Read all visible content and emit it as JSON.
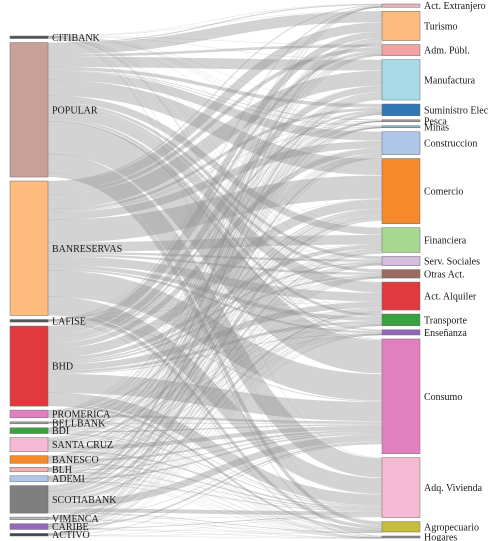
{
  "diagram": {
    "type": "sankey",
    "sources": [
      {
        "label": "CITIBANK",
        "color": "#555555",
        "weight": 0.4
      },
      {
        "label": "POPULAR",
        "color": "#c9a098",
        "weight": 21
      },
      {
        "label": "BANRESERVAS",
        "color": "#fdbb7e",
        "weight": 21
      },
      {
        "label": "LAFISE",
        "color": "#555555",
        "weight": 0.4
      },
      {
        "label": "BHD",
        "color": "#e0393e",
        "weight": 12.5
      },
      {
        "label": "PROMERICA",
        "color": "#e27fbf",
        "weight": 1.2
      },
      {
        "label": "BELLBANK",
        "color": "#999999",
        "weight": 0.3
      },
      {
        "label": "BDI",
        "color": "#3aa140",
        "weight": 0.9
      },
      {
        "label": "SANTA CRUZ",
        "color": "#f5b9d3",
        "weight": 2.2
      },
      {
        "label": "BANESCO",
        "color": "#f58a2c",
        "weight": 1.2
      },
      {
        "label": "BLH",
        "color": "#f3b0b0",
        "weight": 0.7
      },
      {
        "label": "ADEMI",
        "color": "#aec7e8",
        "weight": 0.9
      },
      {
        "label": "SCOTIABANK",
        "color": "#7f7f7f",
        "weight": 4.3
      },
      {
        "label": "VIMENCA",
        "color": "#bbbbbb",
        "weight": 0.4
      },
      {
        "label": "CARIBE",
        "color": "#9467bd",
        "weight": 0.9
      },
      {
        "label": "ACTIVO",
        "color": "#444444",
        "weight": 0.4
      }
    ],
    "targets": [
      {
        "label": "Act. Extranjero",
        "color": "#e8b4b4",
        "weight": 0.5
      },
      {
        "label": "Turismo",
        "color": "#fdbb7e",
        "weight": 4.5
      },
      {
        "label": "Adm. Públ.",
        "color": "#f3a3a3",
        "weight": 1.7
      },
      {
        "label": "Manufactura",
        "color": "#a8dbe8",
        "weight": 6.2
      },
      {
        "label": "Suministro Elec",
        "color": "#2f78b4",
        "weight": 1.8
      },
      {
        "label": "Pesca",
        "color": "#999999",
        "weight": 0.3
      },
      {
        "label": "Minas",
        "color": "#7ab8c9",
        "weight": 0.3
      },
      {
        "label": "Construccion",
        "color": "#aec7e8",
        "weight": 3.5
      },
      {
        "label": "Comercio",
        "color": "#f58a2c",
        "weight": 10
      },
      {
        "label": "Financiera",
        "color": "#a6d98f",
        "weight": 3.8
      },
      {
        "label": "Serv. Sociales",
        "color": "#d5bde0",
        "weight": 1.4
      },
      {
        "label": "Otras Act.",
        "color": "#9c6a5f",
        "weight": 1.3
      },
      {
        "label": "Act. Alquiler",
        "color": "#e0393e",
        "weight": 4.3
      },
      {
        "label": "Transporte",
        "color": "#3aa140",
        "weight": 1.8
      },
      {
        "label": "Enseñanza",
        "color": "#9467bd",
        "weight": 0.8
      },
      {
        "label": "Consumo",
        "color": "#e27fbf",
        "weight": 17.6
      },
      {
        "label": "Adq. Vivienda",
        "color": "#f5b9d3",
        "weight": 9.2
      },
      {
        "label": "Agropecuario",
        "color": "#c5bd3a",
        "weight": 1.6
      },
      {
        "label": "Hogares",
        "color": "#888888",
        "weight": 0.3
      }
    ]
  }
}
